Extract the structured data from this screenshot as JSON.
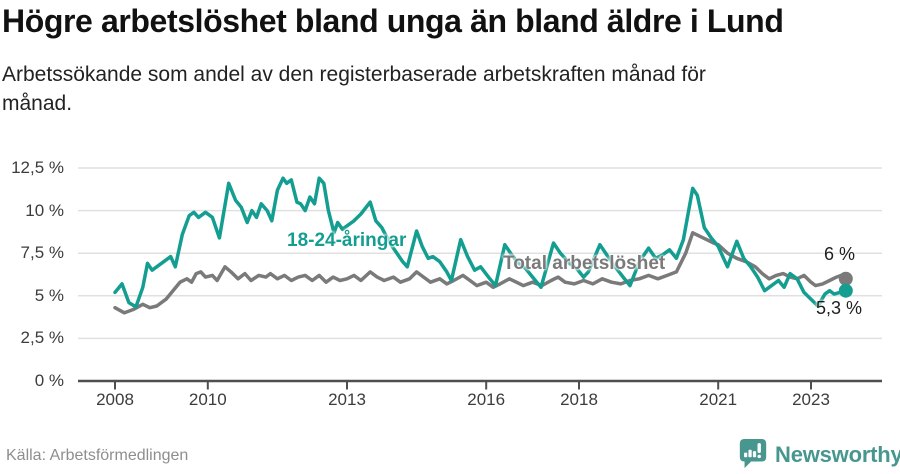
{
  "header": {
    "title": "Högre arbetslöshet bland unga än bland äldre i Lund",
    "subtitle_line1": "Arbetssökande som andel av den registerbaserade arbetskraften månad för",
    "subtitle_line2": "månad."
  },
  "chart_data": {
    "type": "line",
    "title": "Högre arbetslöshet bland unga än bland äldre i Lund",
    "subtitle": "Arbetssökande som andel av den registerbaserade arbetskraften månad för månad.",
    "grid": true,
    "legend_position": "inline-labels",
    "x_axis": {
      "range": [
        2008,
        2023.75
      ],
      "tick_values": [
        2008,
        2010,
        2013,
        2016,
        2018,
        2021,
        2023
      ],
      "tick_labels": [
        "2008",
        "2010",
        "2013",
        "2016",
        "2018",
        "2021",
        "2023"
      ]
    },
    "y_axis": {
      "range": [
        0,
        13
      ],
      "unit": "%",
      "tick_values": [
        0,
        2.5,
        5,
        7.5,
        10,
        12.5
      ],
      "tick_labels": [
        "0 %",
        "2,5 %",
        "5 %",
        "7,5 %",
        "10 %",
        "12,5 %"
      ]
    },
    "series": [
      {
        "name": "18-24-åringar",
        "color": "#149e91",
        "end_label": "5,3 %",
        "end_value": 5.3,
        "points": [
          [
            2008.0,
            5.2
          ],
          [
            2008.15,
            5.7
          ],
          [
            2008.3,
            4.6
          ],
          [
            2008.45,
            4.35
          ],
          [
            2008.6,
            5.5
          ],
          [
            2008.7,
            6.9
          ],
          [
            2008.8,
            6.5
          ],
          [
            2008.95,
            6.8
          ],
          [
            2009.05,
            7.0
          ],
          [
            2009.2,
            7.3
          ],
          [
            2009.3,
            6.7
          ],
          [
            2009.45,
            8.6
          ],
          [
            2009.6,
            9.7
          ],
          [
            2009.7,
            9.9
          ],
          [
            2009.8,
            9.6
          ],
          [
            2009.95,
            9.9
          ],
          [
            2010.1,
            9.6
          ],
          [
            2010.25,
            8.4
          ],
          [
            2010.45,
            11.6
          ],
          [
            2010.6,
            10.6
          ],
          [
            2010.72,
            10.2
          ],
          [
            2010.85,
            9.3
          ],
          [
            2010.95,
            10.0
          ],
          [
            2011.05,
            9.6
          ],
          [
            2011.15,
            10.4
          ],
          [
            2011.28,
            10.0
          ],
          [
            2011.38,
            9.4
          ],
          [
            2011.5,
            11.2
          ],
          [
            2011.62,
            11.9
          ],
          [
            2011.7,
            11.6
          ],
          [
            2011.8,
            11.8
          ],
          [
            2011.92,
            10.5
          ],
          [
            2012.0,
            10.4
          ],
          [
            2012.1,
            10.0
          ],
          [
            2012.2,
            10.8
          ],
          [
            2012.3,
            10.4
          ],
          [
            2012.4,
            11.9
          ],
          [
            2012.5,
            11.6
          ],
          [
            2012.6,
            10.0
          ],
          [
            2012.72,
            8.7
          ],
          [
            2012.8,
            9.3
          ],
          [
            2012.9,
            8.9
          ],
          [
            2013.0,
            9.1
          ],
          [
            2013.15,
            9.4
          ],
          [
            2013.3,
            9.8
          ],
          [
            2013.5,
            10.5
          ],
          [
            2013.62,
            9.4
          ],
          [
            2013.75,
            9.0
          ],
          [
            2013.9,
            8.2
          ],
          [
            2014.05,
            7.6
          ],
          [
            2014.2,
            7.0
          ],
          [
            2014.3,
            6.7
          ],
          [
            2014.5,
            8.8
          ],
          [
            2014.62,
            7.9
          ],
          [
            2014.75,
            7.2
          ],
          [
            2014.85,
            7.3
          ],
          [
            2015.0,
            7.0
          ],
          [
            2015.15,
            6.4
          ],
          [
            2015.25,
            5.9
          ],
          [
            2015.45,
            8.3
          ],
          [
            2015.6,
            7.3
          ],
          [
            2015.75,
            6.5
          ],
          [
            2015.88,
            6.7
          ],
          [
            2016.05,
            6.1
          ],
          [
            2016.2,
            5.6
          ],
          [
            2016.4,
            8.0
          ],
          [
            2016.55,
            7.4
          ],
          [
            2016.7,
            6.9
          ],
          [
            2016.85,
            6.6
          ],
          [
            2017.0,
            6.1
          ],
          [
            2017.18,
            5.5
          ],
          [
            2017.45,
            8.1
          ],
          [
            2017.6,
            7.5
          ],
          [
            2017.8,
            6.9
          ],
          [
            2017.95,
            6.6
          ],
          [
            2018.1,
            6.1
          ],
          [
            2018.2,
            6.4
          ],
          [
            2018.45,
            8.0
          ],
          [
            2018.6,
            7.4
          ],
          [
            2018.75,
            6.8
          ],
          [
            2018.95,
            6.1
          ],
          [
            2019.1,
            5.6
          ],
          [
            2019.3,
            7.0
          ],
          [
            2019.5,
            7.8
          ],
          [
            2019.65,
            7.2
          ],
          [
            2019.8,
            7.4
          ],
          [
            2019.95,
            7.7
          ],
          [
            2020.1,
            7.2
          ],
          [
            2020.25,
            8.3
          ],
          [
            2020.45,
            11.3
          ],
          [
            2020.55,
            10.9
          ],
          [
            2020.7,
            9.0
          ],
          [
            2020.85,
            8.4
          ],
          [
            2021.0,
            7.9
          ],
          [
            2021.1,
            7.3
          ],
          [
            2021.2,
            6.7
          ],
          [
            2021.4,
            8.2
          ],
          [
            2021.55,
            7.2
          ],
          [
            2021.7,
            6.7
          ],
          [
            2021.85,
            6.1
          ],
          [
            2022.0,
            5.3
          ],
          [
            2022.15,
            5.6
          ],
          [
            2022.3,
            5.9
          ],
          [
            2022.42,
            5.5
          ],
          [
            2022.55,
            6.3
          ],
          [
            2022.7,
            6.0
          ],
          [
            2022.85,
            5.2
          ],
          [
            2023.0,
            4.8
          ],
          [
            2023.15,
            4.4
          ],
          [
            2023.3,
            5.1
          ],
          [
            2023.4,
            5.3
          ],
          [
            2023.5,
            5.1
          ],
          [
            2023.62,
            5.2
          ],
          [
            2023.75,
            5.3
          ]
        ]
      },
      {
        "name": "Total arbetslöshet",
        "color": "#7a7a7a",
        "end_label": "6 %",
        "end_value": 6.0,
        "points": [
          [
            2008.0,
            4.3
          ],
          [
            2008.2,
            4.0
          ],
          [
            2008.4,
            4.2
          ],
          [
            2008.6,
            4.5
          ],
          [
            2008.75,
            4.3
          ],
          [
            2008.9,
            4.4
          ],
          [
            2009.1,
            4.8
          ],
          [
            2009.25,
            5.3
          ],
          [
            2009.4,
            5.8
          ],
          [
            2009.55,
            6.0
          ],
          [
            2009.65,
            5.8
          ],
          [
            2009.75,
            6.3
          ],
          [
            2009.85,
            6.4
          ],
          [
            2009.95,
            6.1
          ],
          [
            2010.1,
            6.2
          ],
          [
            2010.2,
            5.9
          ],
          [
            2010.37,
            6.7
          ],
          [
            2010.5,
            6.4
          ],
          [
            2010.65,
            6.0
          ],
          [
            2010.8,
            6.3
          ],
          [
            2010.93,
            5.9
          ],
          [
            2011.1,
            6.2
          ],
          [
            2011.25,
            6.1
          ],
          [
            2011.35,
            6.3
          ],
          [
            2011.5,
            6.0
          ],
          [
            2011.65,
            6.2
          ],
          [
            2011.8,
            5.9
          ],
          [
            2011.95,
            6.1
          ],
          [
            2012.1,
            6.2
          ],
          [
            2012.25,
            5.9
          ],
          [
            2012.4,
            6.2
          ],
          [
            2012.55,
            5.8
          ],
          [
            2012.7,
            6.1
          ],
          [
            2012.85,
            5.9
          ],
          [
            2013.0,
            6.0
          ],
          [
            2013.15,
            6.2
          ],
          [
            2013.3,
            5.9
          ],
          [
            2013.5,
            6.4
          ],
          [
            2013.65,
            6.1
          ],
          [
            2013.8,
            5.9
          ],
          [
            2014.0,
            6.1
          ],
          [
            2014.15,
            5.8
          ],
          [
            2014.35,
            6.0
          ],
          [
            2014.5,
            6.4
          ],
          [
            2014.65,
            6.1
          ],
          [
            2014.8,
            5.8
          ],
          [
            2015.0,
            6.0
          ],
          [
            2015.15,
            5.7
          ],
          [
            2015.3,
            5.9
          ],
          [
            2015.5,
            6.2
          ],
          [
            2015.65,
            5.9
          ],
          [
            2015.8,
            5.6
          ],
          [
            2016.0,
            5.8
          ],
          [
            2016.15,
            5.5
          ],
          [
            2016.3,
            5.7
          ],
          [
            2016.5,
            6.0
          ],
          [
            2016.65,
            5.8
          ],
          [
            2016.8,
            5.6
          ],
          [
            2017.0,
            5.8
          ],
          [
            2017.2,
            5.6
          ],
          [
            2017.4,
            5.9
          ],
          [
            2017.55,
            6.1
          ],
          [
            2017.7,
            5.8
          ],
          [
            2017.9,
            5.7
          ],
          [
            2018.1,
            5.9
          ],
          [
            2018.3,
            5.7
          ],
          [
            2018.5,
            6.0
          ],
          [
            2018.7,
            5.8
          ],
          [
            2018.9,
            5.7
          ],
          [
            2019.1,
            5.9
          ],
          [
            2019.3,
            6.0
          ],
          [
            2019.5,
            6.2
          ],
          [
            2019.7,
            6.0
          ],
          [
            2019.9,
            6.2
          ],
          [
            2020.1,
            6.4
          ],
          [
            2020.3,
            7.5
          ],
          [
            2020.45,
            8.7
          ],
          [
            2020.6,
            8.5
          ],
          [
            2020.75,
            8.3
          ],
          [
            2020.9,
            8.1
          ],
          [
            2021.0,
            8.0
          ],
          [
            2021.2,
            7.5
          ],
          [
            2021.4,
            7.2
          ],
          [
            2021.6,
            7.0
          ],
          [
            2021.8,
            6.7
          ],
          [
            2021.95,
            6.3
          ],
          [
            2022.1,
            6.0
          ],
          [
            2022.25,
            6.2
          ],
          [
            2022.4,
            6.3
          ],
          [
            2022.55,
            6.1
          ],
          [
            2022.7,
            6.0
          ],
          [
            2022.85,
            6.2
          ],
          [
            2023.0,
            5.8
          ],
          [
            2023.1,
            5.6
          ],
          [
            2023.25,
            5.7
          ],
          [
            2023.4,
            5.9
          ],
          [
            2023.55,
            6.1
          ],
          [
            2023.65,
            6.2
          ],
          [
            2023.75,
            6.0
          ]
        ]
      }
    ]
  },
  "footer": {
    "source": "Källa: Arbetsförmedlingen",
    "brand": "Newsworthy"
  },
  "colors": {
    "youth_line": "#149e91",
    "total_line": "#7a7a7a",
    "gridline": "#e0e0e0",
    "axis": "#4f4f4f",
    "brand_teal": "#47978f",
    "text_dark": "#111111",
    "text_muted": "#8e8e8e"
  }
}
